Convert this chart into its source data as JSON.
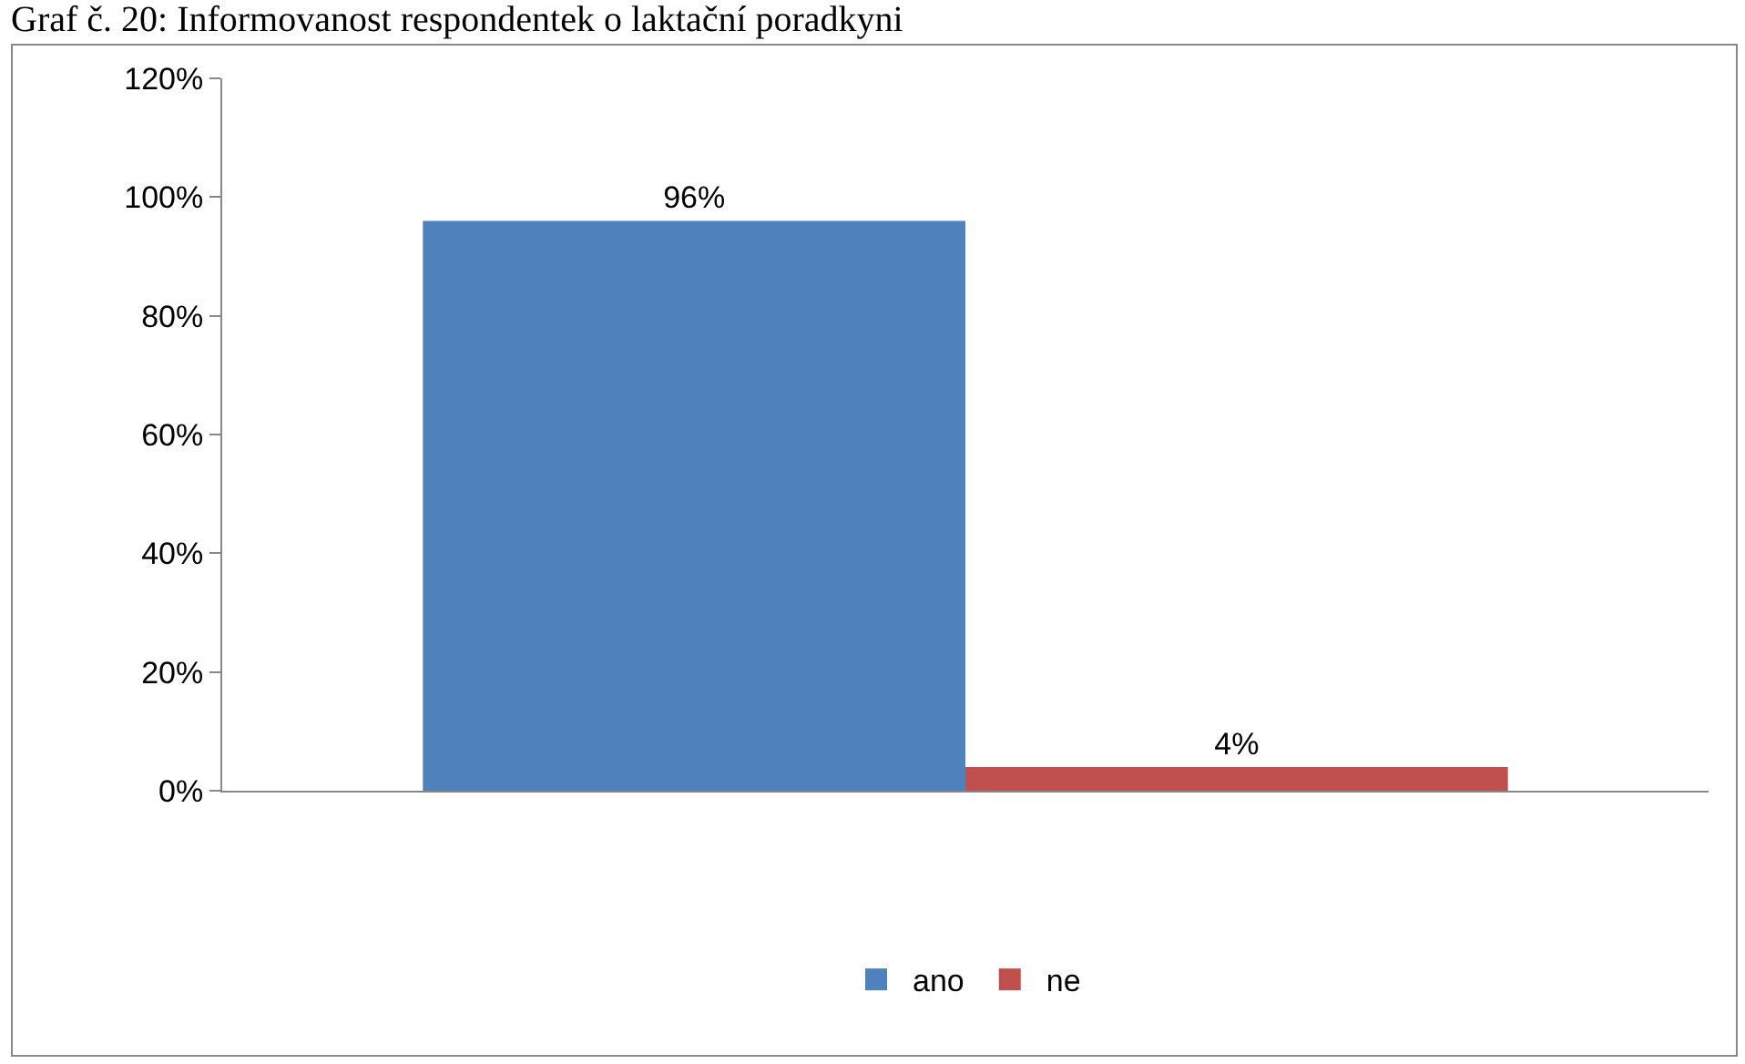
{
  "chart_data": {
    "type": "bar",
    "title": "Graf č. 20: Informovanost respondentek o laktační poradkyni",
    "categories": [
      null
    ],
    "series": [
      {
        "name": "ano",
        "color": "#4f81bd",
        "values": [
          96
        ],
        "value_labels": [
          "96%"
        ]
      },
      {
        "name": "ne",
        "color": "#c0504d",
        "values": [
          4
        ],
        "value_labels": [
          "4%"
        ]
      }
    ],
    "ylim": [
      0,
      120
    ],
    "yticks": [
      {
        "value": 0,
        "label": "0%"
      },
      {
        "value": 20,
        "label": "20%"
      },
      {
        "value": 40,
        "label": "40%"
      },
      {
        "value": 60,
        "label": "60%"
      },
      {
        "value": 80,
        "label": "80%"
      },
      {
        "value": 100,
        "label": "100%"
      },
      {
        "value": 120,
        "label": "120%"
      }
    ],
    "grid": false,
    "legend": "bottom"
  }
}
